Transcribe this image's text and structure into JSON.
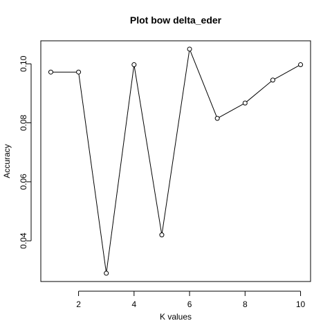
{
  "chart_data": {
    "type": "line",
    "title": "Plot bow delta_eder",
    "xlabel": "K values",
    "ylabel": "Accuracy",
    "x": [
      1,
      2,
      3,
      4,
      5,
      6,
      7,
      8,
      9,
      10
    ],
    "values": [
      0.0972,
      0.0972,
      0.029,
      0.0997,
      0.042,
      0.105,
      0.0815,
      0.0867,
      0.0945,
      0.0997
    ],
    "xlim": [
      0.64,
      10.36
    ],
    "ylim": [
      0.0262,
      0.1078
    ],
    "x_ticks": [
      2,
      4,
      6,
      8,
      10
    ],
    "x_tick_labels": [
      "2",
      "4",
      "6",
      "8",
      "10"
    ],
    "y_ticks": [
      0.04,
      0.06,
      0.08,
      0.1
    ],
    "y_tick_labels": [
      "0.04",
      "0.06",
      "0.08",
      "0.10"
    ],
    "grid": false,
    "marker": "open-circle",
    "line_color": "#000000"
  }
}
